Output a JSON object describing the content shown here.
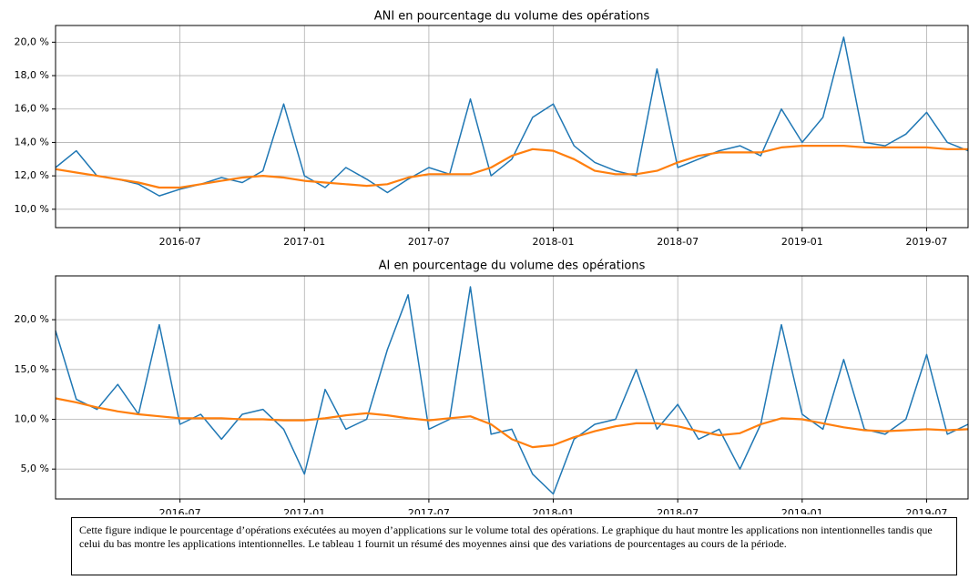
{
  "chart_data": [
    {
      "type": "line",
      "title": "ANI en pourcentage du volume des opérations",
      "x": [
        "2016-01",
        "2016-02",
        "2016-03",
        "2016-04",
        "2016-05",
        "2016-06",
        "2016-07",
        "2016-08",
        "2016-09",
        "2016-10",
        "2016-11",
        "2016-12",
        "2017-01",
        "2017-02",
        "2017-03",
        "2017-04",
        "2017-05",
        "2017-06",
        "2017-07",
        "2017-08",
        "2017-09",
        "2017-10",
        "2017-11",
        "2017-12",
        "2018-01",
        "2018-02",
        "2018-03",
        "2018-04",
        "2018-05",
        "2018-06",
        "2018-07",
        "2018-08",
        "2018-09",
        "2018-10",
        "2018-11",
        "2018-12",
        "2019-01",
        "2019-02",
        "2019-03",
        "2019-04",
        "2019-05",
        "2019-06",
        "2019-07",
        "2019-08",
        "2019-09"
      ],
      "series": [
        {
          "color": "#1f77b4",
          "values": [
            12.5,
            13.5,
            12.0,
            11.8,
            11.5,
            10.8,
            11.2,
            11.5,
            11.9,
            11.6,
            12.3,
            16.3,
            12.0,
            11.3,
            12.5,
            11.8,
            11.0,
            11.8,
            12.5,
            12.1,
            16.6,
            12.0,
            13.0,
            15.5,
            16.3,
            13.8,
            12.8,
            12.3,
            12.0,
            18.4,
            12.5,
            13.0,
            13.5,
            13.8,
            13.2,
            16.0,
            14.0,
            15.5,
            20.3,
            14.0,
            13.8,
            14.5,
            15.8,
            14.0,
            13.5
          ]
        },
        {
          "color": "#ff7f0e",
          "values": [
            12.4,
            12.2,
            12.0,
            11.8,
            11.6,
            11.3,
            11.3,
            11.5,
            11.7,
            11.9,
            12.0,
            11.9,
            11.7,
            11.6,
            11.5,
            11.4,
            11.5,
            11.9,
            12.1,
            12.1,
            12.1,
            12.5,
            13.2,
            13.6,
            13.5,
            13.0,
            12.3,
            12.1,
            12.1,
            12.3,
            12.8,
            13.2,
            13.4,
            13.4,
            13.4,
            13.7,
            13.8,
            13.8,
            13.8,
            13.7,
            13.7,
            13.7,
            13.7,
            13.6,
            13.6
          ]
        }
      ],
      "xlim": [
        "2016-01",
        "2019-09"
      ],
      "xticks": [
        "2016-07",
        "2017-01",
        "2017-07",
        "2018-01",
        "2018-07",
        "2019-01",
        "2019-07"
      ],
      "ylim": [
        8.9,
        21.0
      ],
      "yticks": [
        {
          "value": 10,
          "label": "10,0 %"
        },
        {
          "value": 12,
          "label": "12,0 %"
        },
        {
          "value": 14,
          "label": "14,0 %"
        },
        {
          "value": 16,
          "label": "16,0 %"
        },
        {
          "value": 18,
          "label": "18,0 %"
        },
        {
          "value": 20,
          "label": "20,0 %"
        }
      ],
      "grid": true
    },
    {
      "type": "line",
      "title": "AI en pourcentage du volume des opérations",
      "x": [
        "2016-01",
        "2016-02",
        "2016-03",
        "2016-04",
        "2016-05",
        "2016-06",
        "2016-07",
        "2016-08",
        "2016-09",
        "2016-10",
        "2016-11",
        "2016-12",
        "2017-01",
        "2017-02",
        "2017-03",
        "2017-04",
        "2017-05",
        "2017-06",
        "2017-07",
        "2017-08",
        "2017-09",
        "2017-10",
        "2017-11",
        "2017-12",
        "2018-01",
        "2018-02",
        "2018-03",
        "2018-04",
        "2018-05",
        "2018-06",
        "2018-07",
        "2018-08",
        "2018-09",
        "2018-10",
        "2018-11",
        "2018-12",
        "2019-01",
        "2019-02",
        "2019-03",
        "2019-04",
        "2019-05",
        "2019-06",
        "2019-07",
        "2019-08",
        "2019-09"
      ],
      "series": [
        {
          "color": "#1f77b4",
          "values": [
            18.9,
            12.0,
            11.0,
            13.5,
            10.5,
            19.5,
            9.5,
            10.5,
            8.0,
            10.5,
            11.0,
            9.0,
            4.5,
            13.0,
            9.0,
            10.0,
            17.0,
            22.5,
            9.0,
            10.0,
            23.3,
            8.5,
            9.0,
            4.5,
            2.5,
            8.0,
            9.5,
            10.0,
            15.0,
            9.0,
            11.5,
            8.0,
            9.0,
            5.0,
            9.5,
            19.5,
            10.5,
            9.0,
            16.0,
            9.0,
            8.5,
            10.0,
            16.5,
            8.5,
            9.5
          ]
        },
        {
          "color": "#ff7f0e",
          "values": [
            12.1,
            11.7,
            11.2,
            10.8,
            10.5,
            10.3,
            10.1,
            10.1,
            10.1,
            10.0,
            10.0,
            9.9,
            9.9,
            10.1,
            10.4,
            10.6,
            10.4,
            10.1,
            9.9,
            10.1,
            10.3,
            9.5,
            8.0,
            7.2,
            7.4,
            8.2,
            8.8,
            9.3,
            9.6,
            9.6,
            9.3,
            8.8,
            8.4,
            8.6,
            9.5,
            10.1,
            10.0,
            9.6,
            9.2,
            8.9,
            8.8,
            8.9,
            9.0,
            8.9,
            9.0
          ]
        }
      ],
      "xlim": [
        "2016-01",
        "2019-09"
      ],
      "xticks": [
        "2016-07",
        "2017-01",
        "2017-07",
        "2018-01",
        "2018-07",
        "2019-01",
        "2019-07"
      ],
      "ylim": [
        2.0,
        24.4
      ],
      "yticks": [
        {
          "value": 5,
          "label": "5,0 %"
        },
        {
          "value": 10,
          "label": "10,0 %"
        },
        {
          "value": 15,
          "label": "15,0 %"
        },
        {
          "value": 20,
          "label": "20,0 %"
        }
      ],
      "grid": true
    }
  ],
  "caption": "Cette figure indique le pourcentage d’opérations exécutées au moyen d’applications sur le volume total des opérations. Le graphique du haut montre les applications non intentionnelles tandis que celui du bas montre les applications intentionnelles. Le tableau 1 fournit un résumé des moyennes ainsi que des variations de pourcentages au cours de la période."
}
